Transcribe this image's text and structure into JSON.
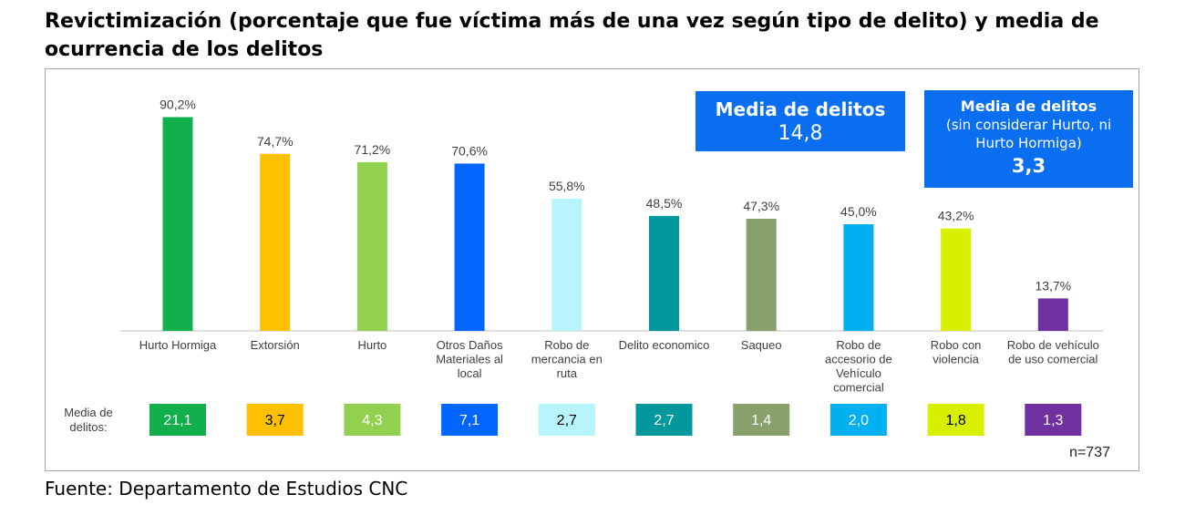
{
  "title": "Revictimización (porcentaje que fue víctima más de una vez según tipo de delito) y media de ocurrencia de los delitos",
  "source": "Fuente: Departamento de Estudios CNC",
  "box_total": {
    "title": "Media de delitos",
    "value": "14,8"
  },
  "box_excl": {
    "title": "Media de delitos",
    "subtitle_line1": "(sin considerar Hurto, ni",
    "subtitle_line2": "Hurto Hormiga)",
    "value": "3,3"
  },
  "media_row_label": [
    "Media de",
    "delitos:"
  ],
  "n_label": "n=737",
  "chart_data": {
    "type": "bar",
    "title": "Revictimización (porcentaje que fue víctima más de una vez según tipo de delito) y media de ocurrencia de los delitos",
    "ylim": [
      0,
      100
    ],
    "grid": false,
    "categories": [
      [
        "Hurto Hormiga"
      ],
      [
        "Extorsión"
      ],
      [
        "Hurto"
      ],
      [
        "Otros Daños",
        "Materiales al",
        "local"
      ],
      [
        "Robo de",
        "mercancia en",
        "ruta"
      ],
      [
        "Delito economico"
      ],
      [
        "Saqueo"
      ],
      [
        "Robo de",
        "accesorio de",
        "Vehículo",
        "comercial"
      ],
      [
        "Robo con",
        "violencia"
      ],
      [
        "Robo de vehículo",
        "de uso comercial"
      ]
    ],
    "values": [
      90.2,
      74.7,
      71.2,
      70.6,
      55.8,
      48.5,
      47.3,
      45.0,
      43.2,
      13.7
    ],
    "value_labels": [
      "90,2%",
      "74,7%",
      "71,2%",
      "70,6%",
      "55,8%",
      "48,5%",
      "47,3%",
      "45,0%",
      "43,2%",
      "13,7%"
    ],
    "media_values": [
      "21,1",
      "3,7",
      "4,3",
      "7,1",
      "2,7",
      "2,7",
      "1,4",
      "2,0",
      "1,8",
      "1,3"
    ],
    "colors": [
      "#12b04c",
      "#ffc000",
      "#92d050",
      "#0066ff",
      "#b8f4fc",
      "#00979d",
      "#87a06c",
      "#00b0f0",
      "#d8ef00",
      "#7030a0"
    ],
    "media_text_colors": [
      "#ffffff",
      "#000000",
      "#ffffff",
      "#ffffff",
      "#000000",
      "#ffffff",
      "#ffffff",
      "#ffffff",
      "#000000",
      "#ffffff"
    ]
  }
}
